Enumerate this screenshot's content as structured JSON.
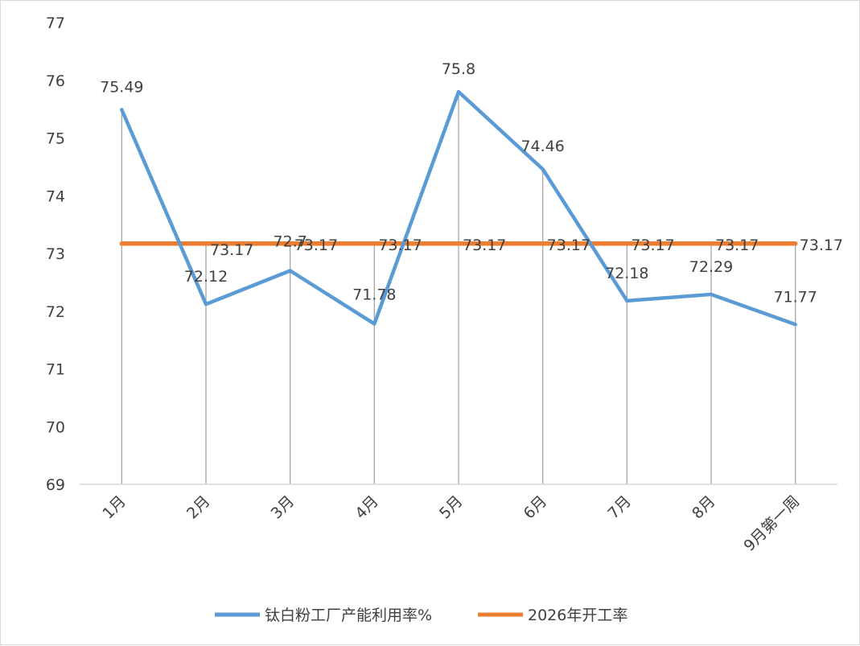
{
  "chart_data": {
    "type": "line",
    "categories": [
      "1月",
      "2月",
      "3月",
      "4月",
      "5月",
      "6月",
      "7月",
      "8月",
      "9月第一周"
    ],
    "series": [
      {
        "name": "钛白粉工厂产能利用率%",
        "color": "#5b9bd5",
        "values": [
          75.49,
          72.12,
          72.7,
          71.78,
          75.8,
          74.46,
          72.18,
          72.29,
          71.77
        ],
        "labels": [
          "75.49",
          "72.12",
          "72.7",
          "71.78",
          "75.8",
          "74.46",
          "72.18",
          "72.29",
          "71.77"
        ]
      },
      {
        "name": "2026年开工率",
        "color": "#ed7d31",
        "values": [
          73.17,
          73.17,
          73.17,
          73.17,
          73.17,
          73.17,
          73.17,
          73.17,
          73.17
        ],
        "labels": [
          "",
          "73.17",
          "73.17",
          "73.17",
          "73.17",
          "73.17",
          "73.17",
          "73.17",
          "73.17"
        ]
      }
    ],
    "ylim": [
      69,
      77
    ],
    "yticks": [
      "69",
      "70",
      "71",
      "72",
      "73",
      "74",
      "75",
      "76",
      "77"
    ],
    "drop_lines": true,
    "legend": "bottom",
    "grid": false
  }
}
